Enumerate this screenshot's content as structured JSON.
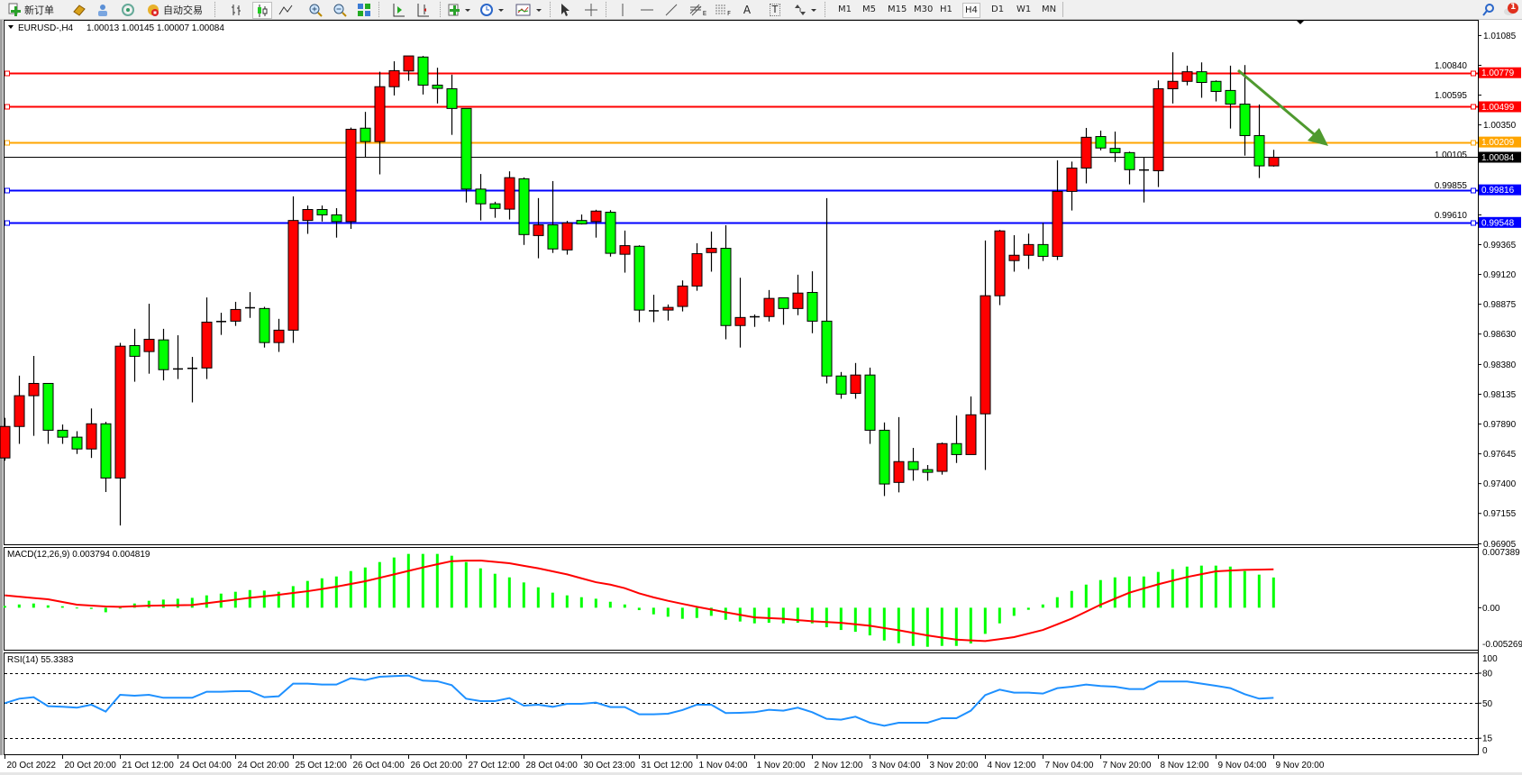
{
  "toolbar": {
    "new_order_label": "新订单",
    "auto_trading_label": "自动交易",
    "icons": [
      "new-order-icon",
      "gold-icon",
      "account-icon",
      "signals-icon",
      "auto-trading-icon",
      "bar-chart-icon",
      "candlestick-icon",
      "line-chart-icon",
      "zoom-in-icon",
      "zoom-out-icon",
      "tile-windows-icon",
      "auto-scroll-icon",
      "chart-shift-icon",
      "indicators-icon",
      "periods-icon",
      "templates-icon",
      "cursor-icon",
      "crosshair-icon",
      "vertical-line-icon",
      "horizontal-line-icon",
      "trendline-icon",
      "fibonacci-icon",
      "fibo-lines-icon",
      "text-icon",
      "text-label-icon",
      "arrows-icon",
      "search-icon",
      "notification-icon"
    ],
    "fibo_e": "E",
    "fibo_f": "F",
    "text_tool": "A",
    "label_tool": "T",
    "timeframes": [
      "M1",
      "M5",
      "M15",
      "M30",
      "H1",
      "H4",
      "D1",
      "W1",
      "MN"
    ],
    "selected_timeframe": "H4",
    "notification_count": "1"
  },
  "chart": {
    "symbol_period": "EURUSD-,H4",
    "ohlc": "1.00013 1.00145 1.00007 1.00084",
    "colors": {
      "bull": "#ff0000",
      "bear": "#00ff00",
      "resistance": "#ff0000",
      "pivot": "#ffa500",
      "support": "#0000ff",
      "bid": "#000000",
      "trend_arrow": "#4f9a2f"
    },
    "price_ticks": [
      "1.01085",
      "1.00840",
      "1.00595",
      "1.00350",
      "1.00105",
      "0.99855",
      "0.99610",
      "0.99365",
      "0.99120",
      "0.98875",
      "0.98630",
      "0.98380",
      "0.98135",
      "0.97890",
      "0.97645",
      "0.97400",
      "0.97155",
      "0.96905"
    ],
    "levels": [
      {
        "price": "1.00779",
        "color": "#ff0000"
      },
      {
        "price": "1.00499",
        "color": "#ff0000"
      },
      {
        "price": "1.00209",
        "color": "#ffa500"
      },
      {
        "price": "0.99816",
        "color": "#0000ff"
      },
      {
        "price": "0.99548",
        "color": "#0000ff"
      }
    ],
    "bid": "1.00084",
    "time_labels": [
      "20 Oct 2022",
      "20 Oct 20:00",
      "21 Oct 12:00",
      "24 Oct 04:00",
      "24 Oct 20:00",
      "25 Oct 12:00",
      "26 Oct 04:00",
      "26 Oct 20:00",
      "27 Oct 12:00",
      "28 Oct 04:00",
      "30 Oct 23:00",
      "31 Oct 12:00",
      "1 Nov 04:00",
      "1 Nov 20:00",
      "2 Nov 12:00",
      "3 Nov 04:00",
      "3 Nov 20:00",
      "4 Nov 12:00",
      "7 Nov 04:00",
      "7 Nov 20:00",
      "8 Nov 12:00",
      "9 Nov 04:00",
      "9 Nov 20:00"
    ]
  },
  "macd": {
    "title": "MACD(12,26,9) 0.003794 0.004819",
    "ticks": [
      "0.007389",
      "0.00",
      "-0.005269"
    ]
  },
  "rsi": {
    "title": "RSI(14) 55.3383",
    "ticks": [
      "100",
      "80",
      "50",
      "15",
      "0"
    ]
  },
  "chart_data": {
    "type": "candlestick",
    "ylim": [
      0.96901,
      1.01214
    ],
    "grid": false,
    "ohlc_fields": [
      "open",
      "high",
      "low",
      "close"
    ],
    "candles": [
      [
        0.97611,
        0.97941,
        0.97589,
        0.9787
      ],
      [
        0.9787,
        0.98288,
        0.97727,
        0.98123
      ],
      [
        0.98123,
        0.9845,
        0.97793,
        0.98224
      ],
      [
        0.98224,
        0.98224,
        0.97727,
        0.97839
      ],
      [
        0.97839,
        0.97886,
        0.97727,
        0.97782
      ],
      [
        0.97782,
        0.97831,
        0.97644,
        0.97685
      ],
      [
        0.97685,
        0.98018,
        0.97611,
        0.97892
      ],
      [
        0.97892,
        0.97908,
        0.97331,
        0.97446
      ],
      [
        0.97446,
        0.98557,
        0.97056,
        0.9853
      ],
      [
        0.98535,
        0.98673,
        0.98238,
        0.98447
      ],
      [
        0.98486,
        0.98879,
        0.98304,
        0.98587
      ],
      [
        0.98582,
        0.98673,
        0.98249,
        0.98337
      ],
      [
        0.98343,
        0.9862,
        0.9826,
        0.98343
      ],
      [
        0.98348,
        0.98442,
        0.98068,
        0.98348
      ],
      [
        0.98351,
        0.98931,
        0.9826,
        0.98728
      ],
      [
        0.98733,
        0.98805,
        0.98623,
        0.98733
      ],
      [
        0.98736,
        0.98895,
        0.98697,
        0.98832
      ],
      [
        0.98846,
        0.98975,
        0.98763,
        0.98846
      ],
      [
        0.9884,
        0.98854,
        0.98519,
        0.9856
      ],
      [
        0.9856,
        0.98755,
        0.98483,
        0.98662
      ],
      [
        0.98662,
        0.99762,
        0.98557,
        0.99564
      ],
      [
        0.99564,
        0.99687,
        0.99454,
        0.99654
      ],
      [
        0.99654,
        0.99687,
        0.99555,
        0.9961
      ],
      [
        0.9961,
        0.99665,
        0.99423,
        0.99555
      ],
      [
        0.99555,
        1.00328,
        0.99495,
        1.00314
      ],
      [
        1.00323,
        1.00457,
        1.00081,
        1.00213
      ],
      [
        1.00213,
        1.00787,
        0.99943,
        1.00664
      ],
      [
        1.00664,
        1.00873,
        1.00592,
        1.00796
      ],
      [
        1.00793,
        1.00917,
        1.00713,
        1.00917
      ],
      [
        1.00908,
        1.00917,
        1.006,
        1.00677
      ],
      [
        1.00677,
        1.0082,
        1.00526,
        1.0065
      ],
      [
        1.00647,
        1.00763,
        1.00268,
        1.00485
      ],
      [
        1.00485,
        1.00485,
        0.99712,
        0.99822
      ],
      [
        0.99822,
        0.99946,
        0.99564,
        0.99701
      ],
      [
        0.99701,
        0.99718,
        0.99586,
        0.99663
      ],
      [
        0.99657,
        0.99968,
        0.99572,
        0.99916
      ],
      [
        0.99907,
        0.99918,
        0.99363,
        0.99448
      ],
      [
        0.9944,
        0.99748,
        0.99253,
        0.99528
      ],
      [
        0.99528,
        0.99888,
        0.99297,
        0.9933
      ],
      [
        0.99322,
        0.99561,
        0.99283,
        0.99544
      ],
      [
        0.99564,
        0.99613,
        0.99531,
        0.99536
      ],
      [
        0.99555,
        0.99652,
        0.99423,
        0.99641
      ],
      [
        0.99632,
        0.99649,
        0.99267,
        0.99294
      ],
      [
        0.99286,
        0.99481,
        0.99135,
        0.99357
      ],
      [
        0.99352,
        0.9936,
        0.98728,
        0.98827
      ],
      [
        0.98821,
        0.98953,
        0.98728,
        0.98821
      ],
      [
        0.98827,
        0.98873,
        0.98741,
        0.98849
      ],
      [
        0.98857,
        0.99071,
        0.98816,
        0.99025
      ],
      [
        0.99025,
        0.99377,
        0.98986,
        0.99291
      ],
      [
        0.993,
        0.99473,
        0.99143,
        0.99335
      ],
      [
        0.99335,
        0.99525,
        0.98587,
        0.987
      ],
      [
        0.987,
        0.99093,
        0.98519,
        0.98766
      ],
      [
        0.98772,
        0.98791,
        0.98689,
        0.98772
      ],
      [
        0.98774,
        0.98992,
        0.98733,
        0.98923
      ],
      [
        0.98928,
        0.98928,
        0.98706,
        0.9884
      ],
      [
        0.9884,
        0.99118,
        0.98785,
        0.98967
      ],
      [
        0.98972,
        0.99146,
        0.98637,
        0.98736
      ],
      [
        0.98736,
        0.99748,
        0.98224,
        0.98285
      ],
      [
        0.98285,
        0.98318,
        0.98098,
        0.98136
      ],
      [
        0.98142,
        0.98392,
        0.98098,
        0.98293
      ],
      [
        0.98293,
        0.98354,
        0.97727,
        0.97839
      ],
      [
        0.97839,
        0.97903,
        0.97298,
        0.97397
      ],
      [
        0.9741,
        0.97947,
        0.97328,
        0.97581
      ],
      [
        0.97581,
        0.97694,
        0.97424,
        0.97515
      ],
      [
        0.97515,
        0.97553,
        0.97424,
        0.97493
      ],
      [
        0.97501,
        0.97738,
        0.97474,
        0.97729
      ],
      [
        0.97729,
        0.9796,
        0.9757,
        0.97639
      ],
      [
        0.97639,
        0.98117,
        0.97639,
        0.97966
      ],
      [
        0.97974,
        0.99399,
        0.97512,
        0.98945
      ],
      [
        0.98945,
        0.99487,
        0.98868,
        0.99478
      ],
      [
        0.99234,
        0.99443,
        0.99143,
        0.99278
      ],
      [
        0.99278,
        0.99456,
        0.99165,
        0.99366
      ],
      [
        0.99366,
        0.99544,
        0.99231,
        0.99269
      ],
      [
        0.99269,
        1.00059,
        0.99239,
        0.99803
      ],
      [
        0.99803,
        1.00048,
        0.99646,
        0.99995
      ],
      [
        0.99995,
        1.00325,
        0.99869,
        1.00248
      ],
      [
        1.00254,
        1.00303,
        1.00141,
        1.0016
      ],
      [
        1.00157,
        1.00295,
        1.00045,
        1.00122
      ],
      [
        1.00122,
        1.0013,
        0.99861,
        0.99982
      ],
      [
        0.99979,
        1.00086,
        0.99712,
        0.99979
      ],
      [
        0.99973,
        1.00716,
        0.99839,
        1.00647
      ],
      [
        1.00647,
        1.00947,
        1.00526,
        1.00708
      ],
      [
        1.00708,
        1.00837,
        1.00675,
        1.00787
      ],
      [
        1.00787,
        1.00864,
        1.00573,
        1.00699
      ],
      [
        1.00708,
        1.00716,
        1.00543,
        1.00625
      ],
      [
        1.00633,
        1.00837,
        1.0032,
        1.00521
      ],
      [
        1.00521,
        1.00842,
        1.00097,
        1.00262
      ],
      [
        1.00262,
        1.00518,
        0.99913,
        1.00013
      ],
      [
        1.00013,
        1.00145,
        1.00007,
        1.00084
      ]
    ],
    "macd": {
      "ylim": [
        -0.005269,
        0.007389
      ],
      "histogram": [
        0.00023,
        0.00041,
        0.00053,
        0.0003,
        0.00019,
        2e-05,
        -0.00015,
        -0.00057,
        0.0,
        0.00053,
        0.00087,
        0.00102,
        0.00113,
        0.00124,
        0.00155,
        0.00177,
        0.002,
        0.00222,
        0.00215,
        0.002,
        0.00271,
        0.00336,
        0.00369,
        0.00392,
        0.0046,
        0.00505,
        0.00573,
        0.0063,
        0.00675,
        0.00675,
        0.00675,
        0.00652,
        0.00573,
        0.00494,
        0.00426,
        0.00381,
        0.00317,
        0.00256,
        0.00189,
        0.00155,
        0.00132,
        0.00113,
        0.00075,
        0.00041,
        -0.0003,
        -0.00083,
        -0.00113,
        -0.00139,
        -0.00128,
        -0.00102,
        -0.00151,
        -0.00173,
        -0.00196,
        -0.00189,
        -0.00196,
        -0.00189,
        -0.00196,
        -0.00245,
        -0.00279,
        -0.00302,
        -0.00347,
        -0.00411,
        -0.00445,
        -0.00479,
        -0.0049,
        -0.00479,
        -0.00479,
        -0.00449,
        -0.00328,
        -0.00196,
        -0.00102,
        -0.00026,
        0.00041,
        0.00132,
        0.00211,
        0.0029,
        0.00347,
        0.00381,
        0.00392,
        0.00392,
        0.00449,
        0.00483,
        0.00516,
        0.00528,
        0.00528,
        0.00516,
        0.0046,
        0.00415,
        0.003794
      ],
      "signal": [
        0.00155,
        0.00139,
        0.00122,
        0.00106,
        0.00072,
        0.00038,
        0.00027,
        0.00015,
        0.00011,
        0.00018,
        0.00026,
        0.00029,
        0.00031,
        0.00034,
        0.00056,
        0.00079,
        0.00101,
        0.00124,
        0.00143,
        0.00162,
        0.00185,
        0.00207,
        0.00235,
        0.00264,
        0.00298,
        0.00332,
        0.00375,
        0.00418,
        0.00462,
        0.00505,
        0.00545,
        0.00584,
        0.0059,
        0.00592,
        0.00575,
        0.00558,
        0.00526,
        0.00494,
        0.00456,
        0.00418,
        0.00369,
        0.0032,
        0.0029,
        0.00245,
        0.0018,
        0.0013,
        0.00087,
        0.00049,
        0.00011,
        -0.00023,
        -0.00057,
        -0.00089,
        -0.00121,
        -0.0013,
        -0.00139,
        -0.00155,
        -0.0017,
        -0.0018,
        -0.00189,
        -0.00208,
        -0.00226,
        -0.00255,
        -0.00283,
        -0.00315,
        -0.00347,
        -0.00374,
        -0.004,
        -0.00409,
        -0.00418,
        -0.00394,
        -0.00369,
        -0.00324,
        -0.00279,
        -0.00208,
        -0.00136,
        -0.00049,
        0.00038,
        0.00114,
        0.00189,
        0.00242,
        0.00294,
        0.0034,
        0.00385,
        0.00421,
        0.00456,
        0.00466,
        0.00475,
        0.00478,
        0.004819
      ],
      "colors": {
        "histogram": "#00ff00",
        "signal": "#ff0000"
      }
    },
    "rsi": {
      "ylim": [
        0,
        100
      ],
      "levels": [
        80,
        50,
        15
      ],
      "values": [
        50,
        54.5,
        56,
        47,
        46.4,
        45.5,
        48.5,
        41.6,
        58.4,
        57.5,
        58.4,
        55.4,
        55.4,
        55.4,
        61.4,
        61.4,
        62,
        62,
        56,
        56.9,
        69.5,
        69.5,
        68.6,
        68.6,
        74.9,
        73.1,
        76.4,
        77,
        77.6,
        72.5,
        71.9,
        68,
        54.5,
        52.1,
        52.1,
        55.1,
        47.6,
        48.5,
        46.4,
        49.4,
        49.4,
        50.6,
        46.1,
        46.1,
        38.9,
        38.9,
        39.5,
        43.1,
        48.5,
        48.5,
        40.1,
        40.4,
        41,
        43.4,
        42.5,
        45.5,
        41,
        34.4,
        33.5,
        36.5,
        30.5,
        27.5,
        30.5,
        30.5,
        30.5,
        35,
        35,
        42.5,
        58.1,
        63.5,
        60.5,
        60.5,
        59.6,
        65,
        66.5,
        68.6,
        67.1,
        66.5,
        64.1,
        64.1,
        71.6,
        71.6,
        71.6,
        69.5,
        67.4,
        65,
        59,
        54.5,
        55.3383
      ],
      "color": "#1e90ff"
    }
  }
}
